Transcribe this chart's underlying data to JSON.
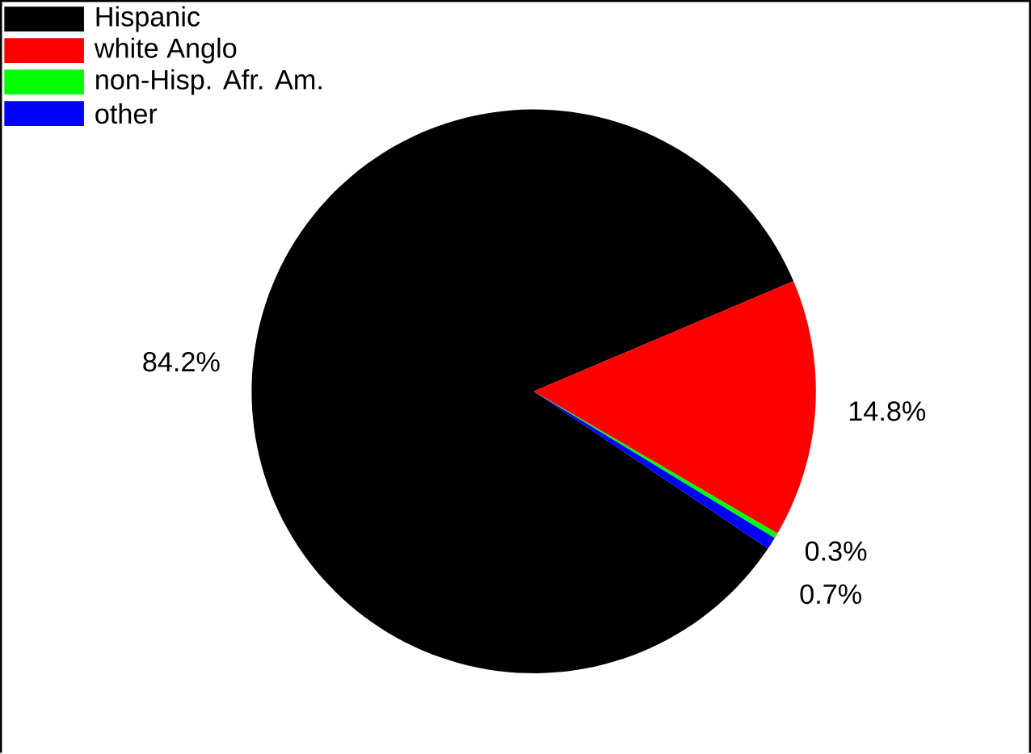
{
  "chart_data": {
    "type": "pie",
    "categories": [
      "Hispanic",
      "white Anglo",
      "non-Hisp. Afr. Am.",
      "other"
    ],
    "values": [
      84.2,
      14.8,
      0.3,
      0.7
    ],
    "colors": [
      "#000000",
      "#ff0000",
      "#00ff00",
      "#0000ff"
    ],
    "value_labels": [
      "84.2%",
      "14.8%",
      "0.3%",
      "0.7%"
    ],
    "legend": "top left"
  }
}
